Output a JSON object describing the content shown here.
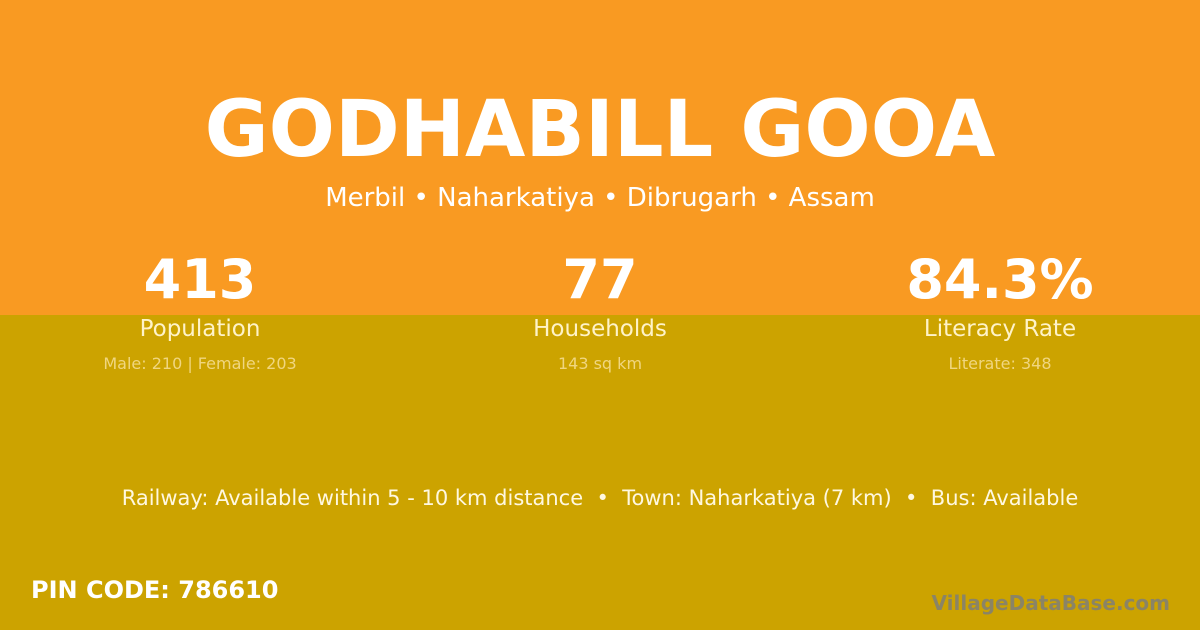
{
  "village_name": "GODHABILL GOOA",
  "location": "Merbil • Naharkatiya • Dibrugarh • Assam",
  "stats": [
    {
      "value": "413",
      "label": "Population",
      "detail": "Male: 210 | Female: 203"
    },
    {
      "value": "77",
      "label": "Households",
      "detail": "143 sq km"
    },
    {
      "value": "84.3%",
      "label": "Literacy Rate",
      "detail": "Literate: 348"
    }
  ],
  "connectivity": "Railway: Available within 5 - 10 km distance  •  Town: Naharkatiya (7 km)  •  Bus: Available",
  "pin_code": "PIN CODE: 786610",
  "watermark": "VillageDataBase.com",
  "colors": {
    "top": "#f99a22",
    "bottom": "#cca300"
  }
}
